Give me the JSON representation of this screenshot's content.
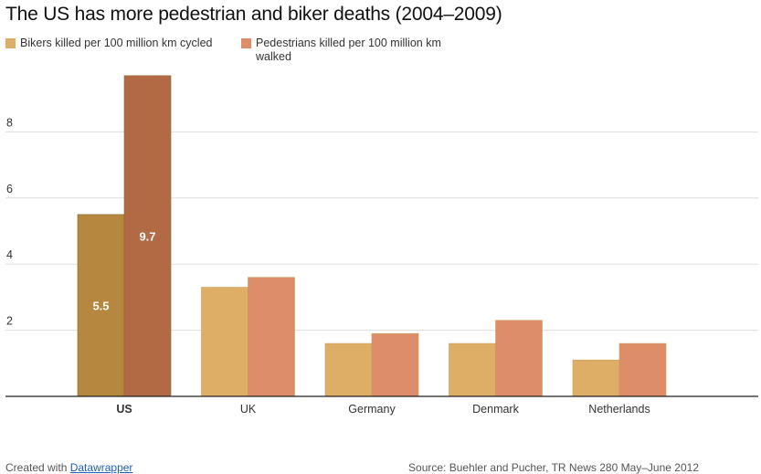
{
  "chart_data": {
    "type": "bar",
    "title": "The US has more pedestrian and biker deaths (2004–2009)",
    "categories": [
      "US",
      "UK",
      "Germany",
      "Denmark",
      "Netherlands"
    ],
    "highlight_category": "US",
    "series": [
      {
        "name": "Bikers killed per 100 million km cycled",
        "values": [
          5.5,
          3.3,
          1.6,
          1.6,
          1.1
        ],
        "color": "#deae66",
        "highlight_color": "#b5873f",
        "data_labels": [
          "5.5",
          "",
          "",
          "",
          ""
        ]
      },
      {
        "name": "Pedestrians killed per 100 million km walked",
        "values": [
          9.7,
          3.6,
          1.9,
          2.3,
          1.6
        ],
        "color": "#dd8e69",
        "highlight_color": "#b26a45",
        "data_labels": [
          "9.7",
          "",
          "",
          "",
          ""
        ]
      }
    ],
    "yticks": [
      "2",
      "4",
      "6",
      "8"
    ],
    "ylim": [
      0,
      10
    ],
    "xlabel": "",
    "ylabel": "",
    "grid": true,
    "legend_position": "top-left"
  },
  "footer": {
    "created_with": "Created with",
    "tool_link": "Datawrapper",
    "source": "Source: Buehler and Pucher, TR News 280 May–June 2012"
  }
}
